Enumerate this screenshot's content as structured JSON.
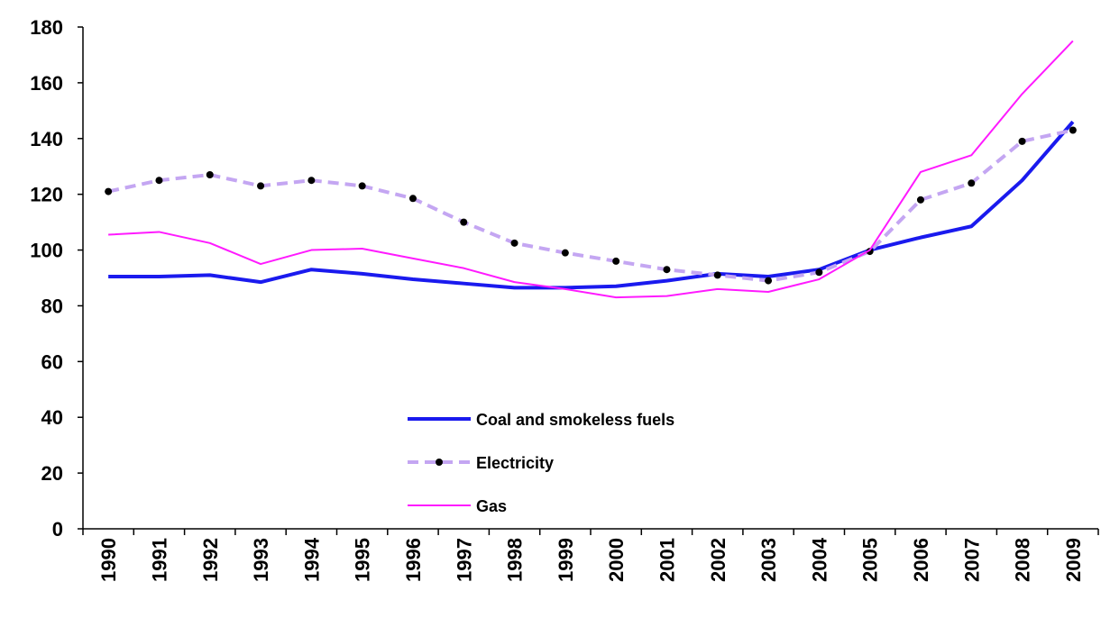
{
  "chart_data": {
    "type": "line",
    "categories": [
      "1990",
      "1991",
      "1992",
      "1993",
      "1994",
      "1995",
      "1996",
      "1997",
      "1998",
      "1999",
      "2000",
      "2001",
      "2002",
      "2003",
      "2004",
      "2005",
      "2006",
      "2007",
      "2008",
      "2009"
    ],
    "series": [
      {
        "name": "Coal and smokeless fuels",
        "color": "#1a1aee",
        "width": 4,
        "dashed": false,
        "markers": false,
        "values": [
          90.5,
          90.5,
          91,
          88.5,
          93,
          91.5,
          89.5,
          88,
          86.5,
          86.5,
          87,
          89,
          91.5,
          90.5,
          93,
          100,
          104.5,
          108.5,
          125,
          146
        ]
      },
      {
        "name": "Electricity",
        "color": "#c4a6f2",
        "width": 4,
        "dashed": true,
        "markers": true,
        "values": [
          121,
          125,
          127,
          123,
          125,
          123,
          118.5,
          110,
          102.5,
          99,
          96,
          93,
          91,
          89,
          92,
          99.5,
          118,
          124,
          139,
          143
        ]
      },
      {
        "name": "Gas",
        "color": "#ff1aff",
        "width": 2,
        "dashed": false,
        "markers": false,
        "values": [
          105.5,
          106.5,
          102.5,
          95,
          100,
          100.5,
          97,
          93.5,
          88.5,
          86,
          83,
          83.5,
          86,
          85,
          89.5,
          100,
          128,
          134,
          156,
          175
        ]
      }
    ],
    "ylim": [
      0,
      180
    ],
    "yticks": [
      0,
      20,
      40,
      60,
      80,
      100,
      120,
      140,
      160,
      180
    ],
    "grid": false,
    "legend": "lower center"
  }
}
